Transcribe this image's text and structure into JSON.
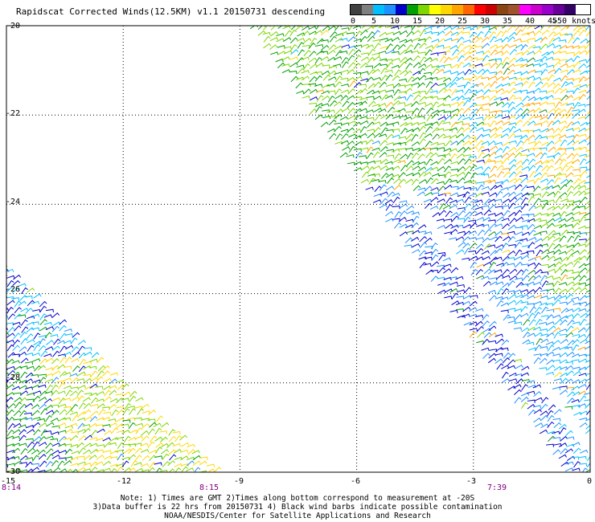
{
  "title": "Rapidscat Corrected Winds(12.5KM) v1.1 20150731 descending",
  "legend": {
    "labels": [
      "0",
      "5",
      "10",
      "15",
      "20",
      "25",
      "30",
      "35",
      "40",
      "45",
      ">50 knots"
    ],
    "colors": [
      "#404040",
      "#7f7f7f",
      "#00bfff",
      "#1e90ff",
      "#0000cd",
      "#00a000",
      "#7cd600",
      "#ffff00",
      "#ffd700",
      "#ffa500",
      "#ff6600",
      "#ff0000",
      "#cc0000",
      "#8b4513",
      "#a0522d",
      "#ff00ff",
      "#cc00cc",
      "#9900cc",
      "#660099",
      "#330066"
    ]
  },
  "axes": {
    "lat_ticks": [
      "-20",
      "-22",
      "-24",
      "-26",
      "-28",
      "-30"
    ],
    "lon_ticks": [
      "-15",
      "-12",
      "-9",
      "-6",
      "-3",
      "0"
    ],
    "lat_range": [
      -30,
      -20
    ],
    "lon_range": [
      -15,
      0
    ],
    "grid": true
  },
  "times": {
    "t1": "8:14",
    "t2": "8:15",
    "t3": "7:39"
  },
  "notes": {
    "line1": "Note: 1) Times are GMT 2)Times along bottom correspond to measurement at -20S",
    "line2": "3)Data buffer is 22 hrs from 20150731 4) Black wind barbs indicate possible contamination",
    "line3": "NOAA/NESDIS/Center for Satellite Applications and Research"
  }
}
